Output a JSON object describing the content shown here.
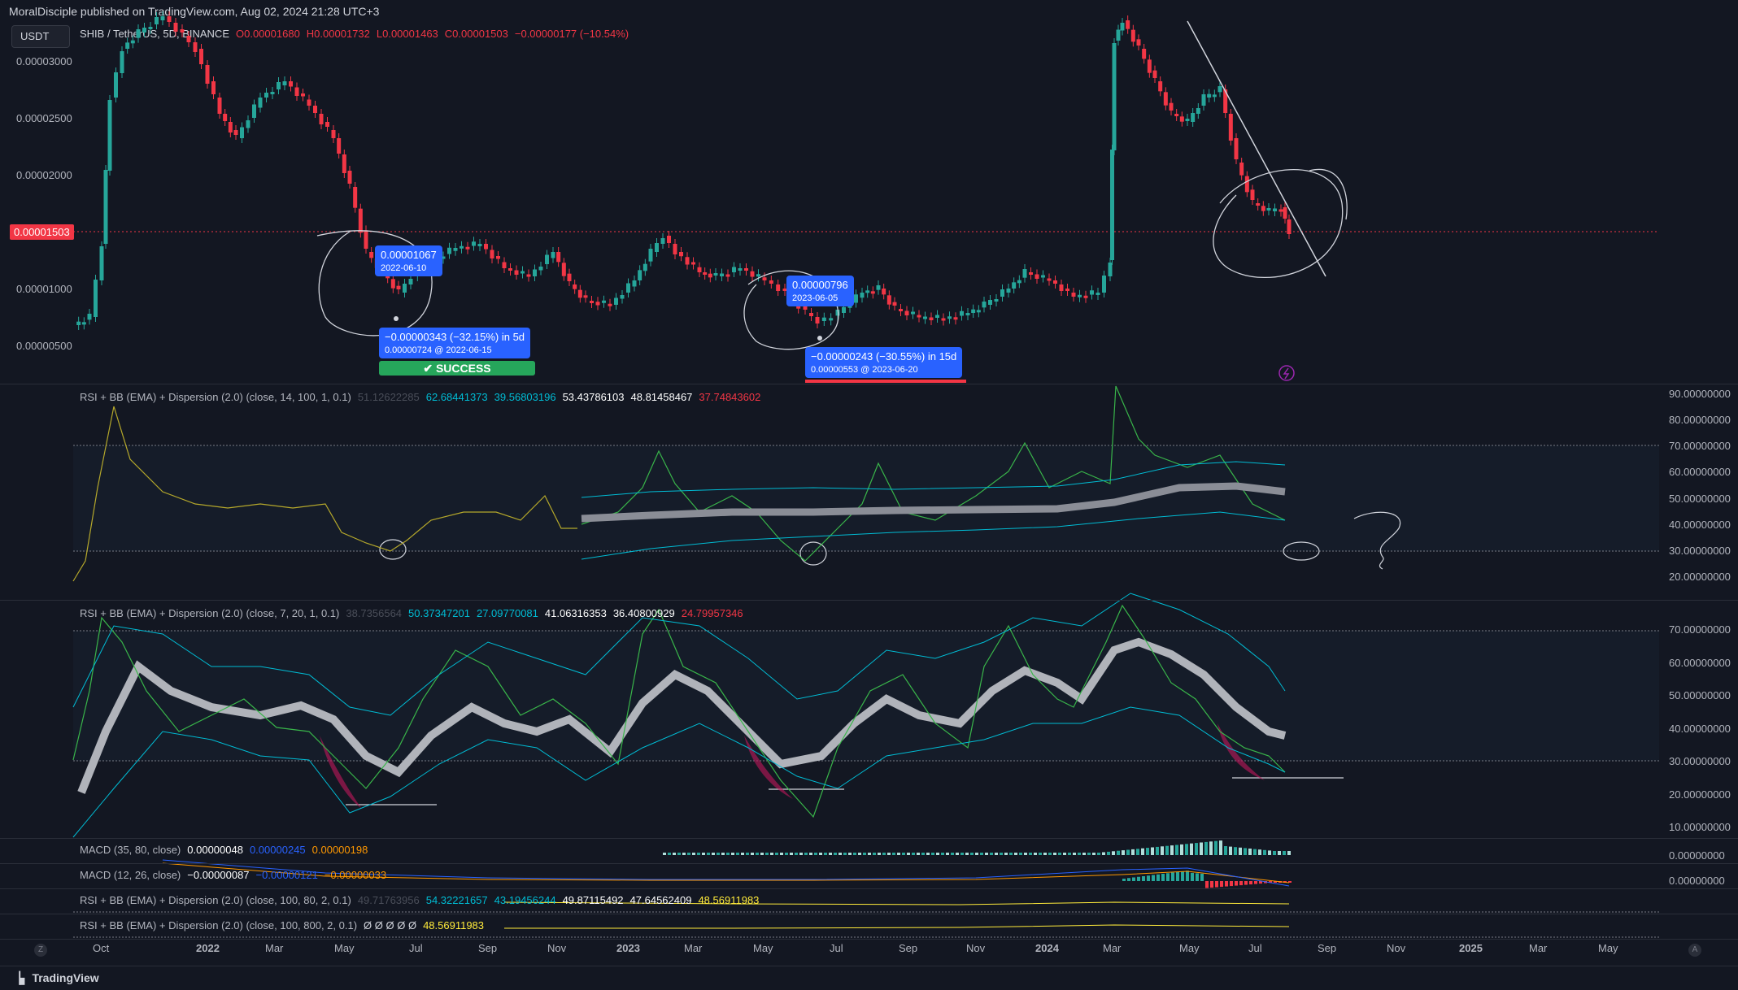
{
  "header": {
    "published": "MoralDisciple published on TradingView.com, Aug 02, 2024 21:28 UTC+3",
    "currency_button": "USDT",
    "symbol": "SHIB / TetherUS, 5D, BINANCE",
    "ohlc": [
      "O0.00001680",
      "H0.00001732",
      "L0.00001463",
      "C0.00001503",
      "−0.00000177 (−10.54%)"
    ]
  },
  "price_axis": [
    "0.00003000",
    "0.00002500",
    "0.00002000",
    "0.00001000",
    "0.00000500"
  ],
  "current_price": "0.00001503",
  "annotations": {
    "a1_label": "0.00001067",
    "a1_date": "2022-06-10",
    "a1_move": "−0.00000343 (−32.15%) in 5d",
    "a1_sub": "0.00000724 @ 2022-06-15",
    "a1_status": "✔ SUCCESS",
    "a2_label": "0.00000796",
    "a2_date": "2023-06-05",
    "a2_move": "−0.00000243 (−30.55%) in 15d",
    "a2_sub": "0.00000553 @ 2023-06-20"
  },
  "rsi1": {
    "title": "RSI + BB (EMA) + Dispersion (2.0) (close, 14, 100, 1, 0.1)",
    "values": [
      "51.12622285",
      "62.68441373",
      "39.56803196",
      "53.43786103",
      "48.81458467",
      "37.74843602"
    ],
    "axis": [
      "90.00000000",
      "80.00000000",
      "70.00000000",
      "60.00000000",
      "50.00000000",
      "40.00000000",
      "30.00000000",
      "20.00000000"
    ]
  },
  "rsi2": {
    "title": "RSI + BB (EMA) + Dispersion (2.0) (close, 7, 20, 1, 0.1)",
    "values": [
      "38.7356564",
      "50.37347201",
      "27.09770081",
      "41.06316353",
      "36.40800929",
      "24.79957346"
    ],
    "axis": [
      "70.00000000",
      "60.00000000",
      "50.00000000",
      "40.00000000",
      "30.00000000",
      "20.00000000",
      "10.00000000"
    ]
  },
  "macd1": {
    "title": "MACD (35, 80, close)",
    "values": [
      "0.00000048",
      "0.00000245",
      "0.00000198"
    ],
    "axis": "0.00000000"
  },
  "macd2": {
    "title": "MACD (12, 26, close)",
    "values": [
      "−0.00000087",
      "−0.00000121",
      "−0.00000033"
    ],
    "axis": "0.00000000"
  },
  "rsi3": {
    "title": "RSI + BB (EMA) + Dispersion (2.0) (close, 100, 80, 2, 0.1)",
    "values": [
      "49.71763956",
      "54.32221657",
      "43.19456244",
      "49.87115492",
      "47.64562409",
      "48.56911983"
    ]
  },
  "rsi4": {
    "title": "RSI + BB (EMA) + Dispersion (2.0) (close, 100, 800, 2, 0.1)",
    "values": [
      "Ø Ø Ø Ø Ø",
      "48.56911983"
    ]
  },
  "time_axis": [
    "Oct",
    "2022",
    "Mar",
    "May",
    "Jul",
    "Sep",
    "Nov",
    "2023",
    "Mar",
    "May",
    "Jul",
    "Sep",
    "Nov",
    "2024",
    "Mar",
    "May",
    "Jul",
    "Sep",
    "Nov",
    "2025",
    "Mar",
    "May"
  ],
  "footer": {
    "brand": "TradingView",
    "left_btn": "Z",
    "right_btn": "A"
  },
  "colors": {
    "bg": "#131722",
    "up": "#26a69a",
    "down": "#f23645",
    "accent": "#2962ff",
    "rsi_yellow": "#b5a82b",
    "rsi_green": "#39b54a"
  }
}
